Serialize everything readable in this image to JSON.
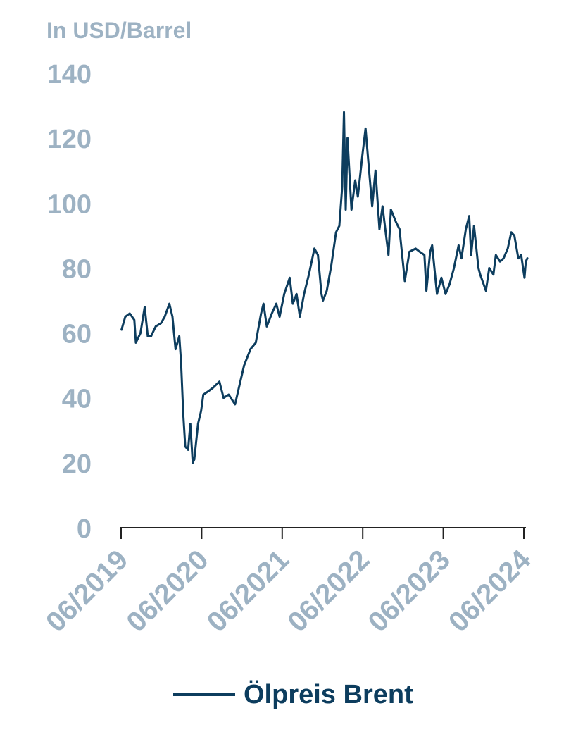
{
  "chart_data": {
    "type": "line",
    "title": "",
    "ylabel": "In USD/Barrel",
    "xlabel": "",
    "ylim": [
      0,
      140
    ],
    "y_ticks": [
      "0",
      "20",
      "40",
      "60",
      "80",
      "100",
      "120",
      "140"
    ],
    "x_ticks": [
      "06/2019",
      "06/2020",
      "06/2021",
      "06/2022",
      "06/2023",
      "06/2024"
    ],
    "grid": false,
    "legend_position": "bottom",
    "series": [
      {
        "name": "Ölpreis Brent",
        "color": "#0d3d5e",
        "points": [
          [
            "2019-06-03",
            61
          ],
          [
            "2019-06-20",
            65
          ],
          [
            "2019-07-10",
            66
          ],
          [
            "2019-07-31",
            64
          ],
          [
            "2019-08-07",
            57
          ],
          [
            "2019-08-28",
            60
          ],
          [
            "2019-09-16",
            68
          ],
          [
            "2019-09-30",
            59
          ],
          [
            "2019-10-15",
            59
          ],
          [
            "2019-11-05",
            62
          ],
          [
            "2019-11-29",
            63
          ],
          [
            "2019-12-16",
            65
          ],
          [
            "2020-01-06",
            69
          ],
          [
            "2020-01-20",
            65
          ],
          [
            "2020-02-03",
            55
          ],
          [
            "2020-02-20",
            59
          ],
          [
            "2020-02-28",
            51
          ],
          [
            "2020-03-09",
            35
          ],
          [
            "2020-03-18",
            25
          ],
          [
            "2020-03-31",
            24
          ],
          [
            "2020-04-10",
            32
          ],
          [
            "2020-04-21",
            20
          ],
          [
            "2020-04-28",
            21
          ],
          [
            "2020-05-15",
            32
          ],
          [
            "2020-05-29",
            36
          ],
          [
            "2020-06-08",
            41
          ],
          [
            "2020-06-30",
            42
          ],
          [
            "2020-07-20",
            43
          ],
          [
            "2020-08-20",
            45
          ],
          [
            "2020-09-08",
            40
          ],
          [
            "2020-10-01",
            41
          ],
          [
            "2020-10-30",
            38
          ],
          [
            "2020-11-16",
            43
          ],
          [
            "2020-12-10",
            50
          ],
          [
            "2021-01-08",
            55
          ],
          [
            "2021-02-01",
            57
          ],
          [
            "2021-02-25",
            66
          ],
          [
            "2021-03-08",
            69
          ],
          [
            "2021-03-23",
            62
          ],
          [
            "2021-04-15",
            66
          ],
          [
            "2021-05-05",
            69
          ],
          [
            "2021-05-20",
            65
          ],
          [
            "2021-06-10",
            72
          ],
          [
            "2021-07-05",
            77
          ],
          [
            "2021-07-19",
            69
          ],
          [
            "2021-08-05",
            72
          ],
          [
            "2021-08-20",
            65
          ],
          [
            "2021-09-08",
            72
          ],
          [
            "2021-09-30",
            78
          ],
          [
            "2021-10-25",
            86
          ],
          [
            "2021-11-10",
            84
          ],
          [
            "2021-11-26",
            72
          ],
          [
            "2021-12-03",
            70
          ],
          [
            "2021-12-20",
            73
          ],
          [
            "2022-01-10",
            81
          ],
          [
            "2022-01-31",
            91
          ],
          [
            "2022-02-15",
            93
          ],
          [
            "2022-02-28",
            105
          ],
          [
            "2022-03-08",
            128
          ],
          [
            "2022-03-16",
            98
          ],
          [
            "2022-03-24",
            120
          ],
          [
            "2022-04-11",
            98
          ],
          [
            "2022-04-28",
            107
          ],
          [
            "2022-05-10",
            102
          ],
          [
            "2022-05-31",
            115
          ],
          [
            "2022-06-14",
            123
          ],
          [
            "2022-06-30",
            110
          ],
          [
            "2022-07-14",
            99
          ],
          [
            "2022-07-29",
            110
          ],
          [
            "2022-08-16",
            92
          ],
          [
            "2022-08-30",
            99
          ],
          [
            "2022-09-15",
            90
          ],
          [
            "2022-09-26",
            84
          ],
          [
            "2022-10-07",
            98
          ],
          [
            "2022-10-31",
            94
          ],
          [
            "2022-11-15",
            92
          ],
          [
            "2022-12-09",
            76
          ],
          [
            "2022-12-30",
            85
          ],
          [
            "2023-01-27",
            86
          ],
          [
            "2023-02-15",
            85
          ],
          [
            "2023-03-08",
            84
          ],
          [
            "2023-03-17",
            73
          ],
          [
            "2023-04-03",
            85
          ],
          [
            "2023-04-12",
            87
          ],
          [
            "2023-05-04",
            72
          ],
          [
            "2023-05-24",
            77
          ],
          [
            "2023-06-12",
            72
          ],
          [
            "2023-06-30",
            75
          ],
          [
            "2023-07-20",
            80
          ],
          [
            "2023-08-10",
            87
          ],
          [
            "2023-08-23",
            83
          ],
          [
            "2023-09-12",
            92
          ],
          [
            "2023-09-27",
            96
          ],
          [
            "2023-10-06",
            84
          ],
          [
            "2023-10-19",
            93
          ],
          [
            "2023-11-08",
            80
          ],
          [
            "2023-11-16",
            78
          ],
          [
            "2023-12-12",
            73
          ],
          [
            "2023-12-27",
            80
          ],
          [
            "2024-01-15",
            78
          ],
          [
            "2024-01-26",
            84
          ],
          [
            "2024-02-14",
            82
          ],
          [
            "2024-03-01",
            83
          ],
          [
            "2024-03-20",
            86
          ],
          [
            "2024-04-05",
            91
          ],
          [
            "2024-04-19",
            90
          ],
          [
            "2024-05-07",
            83
          ],
          [
            "2024-05-20",
            84
          ],
          [
            "2024-06-04",
            77
          ],
          [
            "2024-06-10",
            82
          ],
          [
            "2024-06-17",
            83
          ]
        ]
      }
    ]
  },
  "colors": {
    "axis_text": "#9db2c3",
    "line": "#0d3d5e",
    "axis_line": "#222222"
  }
}
